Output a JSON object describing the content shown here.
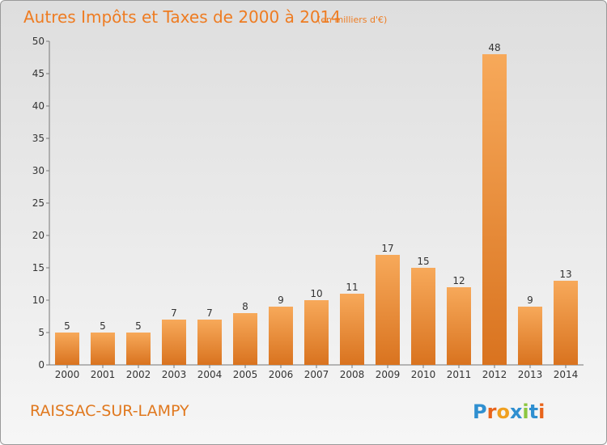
{
  "chart_data": {
    "type": "bar",
    "title": "Autres Impôts et Taxes de 2000 à 2014",
    "subtitle": "(en milliers d'€)",
    "categories": [
      "2000",
      "2001",
      "2002",
      "2003",
      "2004",
      "2005",
      "2006",
      "2007",
      "2008",
      "2009",
      "2010",
      "2011",
      "2012",
      "2013",
      "2014"
    ],
    "values": [
      5,
      5,
      5,
      7,
      7,
      8,
      9,
      10,
      11,
      17,
      15,
      12,
      48,
      9,
      13
    ],
    "ylim": [
      0,
      50
    ],
    "yticks": [
      0,
      5,
      10,
      15,
      20,
      25,
      30,
      35,
      40,
      45,
      50
    ],
    "grid": false,
    "bar_color_light": "#f7a95a",
    "bar_color_dark": "#d9731f"
  },
  "place_name": "RAISSAC-SUR-LAMPY",
  "logo": {
    "text": "Proxiti",
    "letter_colors": [
      "#2f8fd0",
      "#e8641b",
      "#f0a020",
      "#2f8fd0",
      "#8cc63f",
      "#2f8fd0",
      "#e8641b"
    ]
  },
  "title_color": "#ee7c22"
}
